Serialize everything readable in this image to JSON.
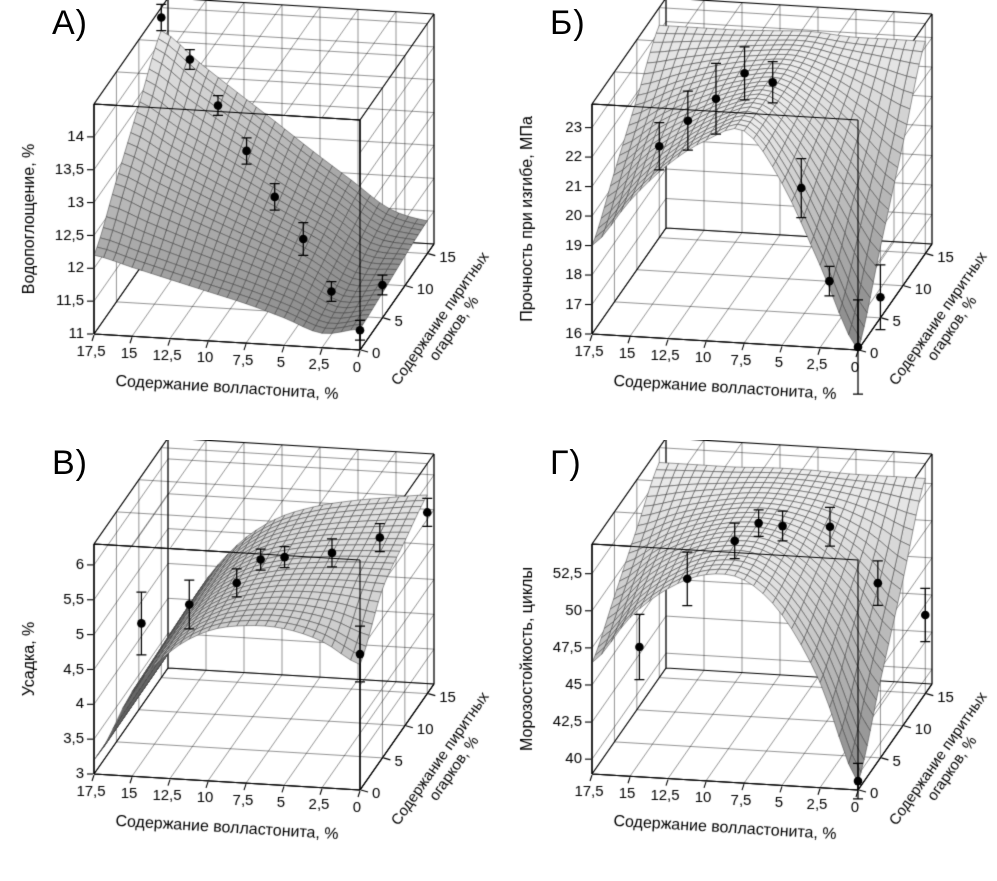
{
  "figure": {
    "colors": {
      "background": "#ffffff",
      "box_line": "#000000",
      "grid_line": "#1a1a1a",
      "mesh_line": "#3c3c3c",
      "surface_low": "#858585",
      "surface_high": "#f2f2f2",
      "point": "#000000",
      "text": "#000000"
    }
  },
  "chart_data": [
    {
      "type": "surface3d",
      "panel_label": "А)",
      "z_axis": {
        "title": "Водопоглощение, %",
        "tick_labels": [
          "11",
          "11,5",
          "12",
          "12,5",
          "13",
          "13,5",
          "14"
        ],
        "range": [
          11,
          14.5
        ]
      },
      "x_axis": {
        "title": "Содержание волластонита, %",
        "tick_labels": [
          "17,5",
          "15",
          "12,5",
          "10",
          "7,5",
          "5",
          "2,5",
          "0"
        ],
        "range": [
          0,
          17.5
        ],
        "reversed": true
      },
      "y_axis": {
        "title_lines": [
          "Содержание пиритных",
          "огарков, %"
        ],
        "tick_labels": [
          "0",
          "5",
          "10",
          "15"
        ],
        "range": [
          0,
          16.5
        ]
      },
      "surface": {
        "x_values": [
          17.5,
          15,
          12.5,
          10,
          7.5,
          5,
          2.5,
          0
        ],
        "y_values": [
          0,
          5,
          10,
          15
        ],
        "z_grid": [
          [
            12.2,
            12.05,
            11.9,
            11.75,
            11.6,
            11.42,
            11.22,
            11.32
          ],
          [
            12.85,
            12.6,
            12.36,
            12.13,
            11.9,
            11.65,
            11.33,
            11.38
          ],
          [
            13.5,
            13.15,
            12.82,
            12.5,
            12.18,
            11.87,
            11.5,
            11.45
          ],
          [
            14.15,
            13.7,
            13.28,
            12.87,
            12.45,
            12.05,
            11.65,
            11.5
          ]
        ]
      },
      "points": [
        {
          "x": 17.5,
          "y": 15,
          "z": 14.35,
          "e": 0.2
        },
        {
          "x": 15,
          "y": 12.9,
          "z": 13.95,
          "e": 0.15
        },
        {
          "x": 12.5,
          "y": 10.7,
          "z": 13.5,
          "e": 0.15
        },
        {
          "x": 10,
          "y": 8.6,
          "z": 13.05,
          "e": 0.2
        },
        {
          "x": 7.5,
          "y": 6.4,
          "z": 12.6,
          "e": 0.2
        },
        {
          "x": 5,
          "y": 4.3,
          "z": 12.2,
          "e": 0.25
        },
        {
          "x": 2.5,
          "y": 2.1,
          "z": 11.65,
          "e": 0.15
        },
        {
          "x": 0,
          "y": 5,
          "z": 11.5,
          "e": 0.15
        },
        {
          "x": 0,
          "y": 0,
          "z": 11.3,
          "e": 0.15
        }
      ]
    },
    {
      "type": "surface3d",
      "panel_label": "Б)",
      "z_axis": {
        "title": "Прочность при изгибе, МПа",
        "tick_labels": [
          "16",
          "17",
          "18",
          "19",
          "20",
          "21",
          "22",
          "23"
        ],
        "range": [
          16,
          23.8
        ]
      },
      "x_axis": {
        "title": "Содержание волластонита, %",
        "tick_labels": [
          "17,5",
          "15",
          "12,5",
          "10",
          "7,5",
          "5",
          "2,5",
          "0"
        ],
        "range": [
          0,
          17.5
        ],
        "reversed": true
      },
      "y_axis": {
        "title_lines": [
          "Содержание пиритных",
          "огарков, %"
        ],
        "tick_labels": [
          "0",
          "5",
          "10",
          "15"
        ],
        "range": [
          0,
          16.5
        ]
      },
      "surface": {
        "x_values": [
          17.5,
          15,
          12.5,
          10,
          7.5,
          5,
          2.5,
          0
        ],
        "y_values": [
          0,
          5,
          10,
          15
        ],
        "z_grid": [
          [
            19.0,
            20.6,
            21.9,
            22.8,
            23.2,
            21.5,
            18.8,
            16.0
          ],
          [
            20.4,
            21.5,
            22.3,
            22.95,
            23.2,
            22.1,
            20.3,
            18.4
          ],
          [
            21.8,
            22.35,
            22.8,
            23.1,
            23.2,
            22.65,
            21.75,
            20.8
          ],
          [
            23.2,
            23.2,
            23.2,
            23.25,
            23.3,
            23.2,
            23.2,
            23.2
          ]
        ]
      },
      "points": [
        {
          "x": 17.5,
          "y": 15,
          "z": 19.1,
          "e": 0.8
        },
        {
          "x": 15,
          "y": 12.9,
          "z": 20.5,
          "e": 1.0
        },
        {
          "x": 12.5,
          "y": 10.7,
          "z": 21.8,
          "e": 1.2
        },
        {
          "x": 10,
          "y": 8.6,
          "z": 23.2,
          "e": 0.9
        },
        {
          "x": 7.5,
          "y": 6.4,
          "z": 23.45,
          "e": 0.7
        },
        {
          "x": 5,
          "y": 4.3,
          "z": 20.4,
          "e": 1.0
        },
        {
          "x": 2.5,
          "y": 2.1,
          "z": 17.8,
          "e": 0.5
        },
        {
          "x": 0,
          "y": 5,
          "z": 16.7,
          "e": 1.1
        },
        {
          "x": 0,
          "y": 0,
          "z": 16.1,
          "e": 1.6
        }
      ]
    },
    {
      "type": "surface3d",
      "panel_label": "В)",
      "z_axis": {
        "title": "Усадка, %",
        "tick_labels": [
          "3",
          "3,5",
          "4",
          "4,5",
          "5",
          "5,5",
          "6"
        ],
        "range": [
          3,
          6.3
        ]
      },
      "x_axis": {
        "title": "Содержание волластонита, %",
        "tick_labels": [
          "17,5",
          "15",
          "12,5",
          "10",
          "7,5",
          "5",
          "2,5",
          "0"
        ],
        "range": [
          0,
          17.5
        ],
        "reversed": true
      },
      "y_axis": {
        "title_lines": [
          "Содержание пиритных",
          "огарков, %"
        ],
        "tick_labels": [
          "0",
          "5",
          "10",
          "15"
        ],
        "range": [
          0,
          16.5
        ]
      },
      "surface": {
        "x_values": [
          17.5,
          15,
          12.5,
          10,
          7.5,
          5,
          2.5,
          0
        ],
        "y_values": [
          0,
          5,
          10,
          15
        ],
        "z_grid": [
          [
            3.2,
            4.21,
            4.82,
            5.15,
            5.26,
            5.25,
            5.1,
            4.8
          ],
          [
            3.2,
            4.24,
            4.87,
            5.22,
            5.38,
            5.44,
            5.45,
            5.42
          ],
          [
            3.2,
            4.27,
            4.92,
            5.3,
            5.48,
            5.57,
            5.62,
            5.65
          ],
          [
            3.2,
            4.29,
            4.97,
            5.37,
            5.58,
            5.7,
            5.78,
            5.85
          ]
        ]
      },
      "points": [
        {
          "x": 15,
          "y": 2.1,
          "z": 5.0,
          "e": 0.45
        },
        {
          "x": 12.5,
          "y": 4.3,
          "z": 5.1,
          "e": 0.35
        },
        {
          "x": 10,
          "y": 6.4,
          "z": 5.25,
          "e": 0.2
        },
        {
          "x": 8.75,
          "y": 7.5,
          "z": 5.5,
          "e": 0.15
        },
        {
          "x": 7.5,
          "y": 8.6,
          "z": 5.45,
          "e": 0.15
        },
        {
          "x": 5,
          "y": 10.7,
          "z": 5.35,
          "e": 0.2
        },
        {
          "x": 2.5,
          "y": 12.9,
          "z": 5.4,
          "e": 0.2
        },
        {
          "x": 0,
          "y": 15,
          "z": 5.6,
          "e": 0.2
        },
        {
          "x": 0,
          "y": 0,
          "z": 4.95,
          "e": 0.4
        }
      ]
    },
    {
      "type": "surface3d",
      "panel_label": "Г)",
      "z_axis": {
        "title": "Морозостойкость, циклы",
        "tick_labels": [
          "40",
          "42,5",
          "45",
          "47,5",
          "50",
          "52,5"
        ],
        "range": [
          39,
          54.5
        ]
      },
      "x_axis": {
        "title": "Содержание волластонита, %",
        "tick_labels": [
          "17,5",
          "15",
          "12,5",
          "10",
          "7,5",
          "5",
          "2,5",
          "0"
        ],
        "range": [
          0,
          17.5
        ],
        "reversed": true
      },
      "y_axis": {
        "title_lines": [
          "Содержание пиритных",
          "огарков, %"
        ],
        "tick_labels": [
          "0",
          "5",
          "10",
          "15"
        ],
        "range": [
          0,
          16.5
        ]
      },
      "surface": {
        "x_values": [
          17.5,
          15,
          12.5,
          10,
          7.5,
          5,
          2.5,
          0
        ],
        "y_values": [
          0,
          5,
          10,
          15
        ],
        "z_grid": [
          [
            46.5,
            49.7,
            51.8,
            52.9,
            52.7,
            50.5,
            46.1,
            39.5
          ],
          [
            48.8,
            51.0,
            52.4,
            53.1,
            53.0,
            51.5,
            48.6,
            44.2
          ],
          [
            51.2,
            52.2,
            52.9,
            53.3,
            53.2,
            52.5,
            51.0,
            48.8
          ],
          [
            53.5,
            53.5,
            53.5,
            53.6,
            53.6,
            53.5,
            53.5,
            53.5
          ]
        ]
      },
      "points": [
        {
          "x": 15,
          "y": 2.1,
          "z": 46.8,
          "e": 2.2
        },
        {
          "x": 12.5,
          "y": 4.3,
          "z": 50.6,
          "e": 1.8
        },
        {
          "x": 10,
          "y": 6.4,
          "z": 52.4,
          "e": 1.2
        },
        {
          "x": 8.75,
          "y": 7.5,
          "z": 53.2,
          "e": 0.9
        },
        {
          "x": 7.5,
          "y": 8.6,
          "z": 52.6,
          "e": 1.0
        },
        {
          "x": 5,
          "y": 10.7,
          "z": 51.8,
          "e": 1.3
        },
        {
          "x": 2.5,
          "y": 12.9,
          "z": 47.2,
          "e": 1.5
        },
        {
          "x": 0,
          "y": 15,
          "z": 44.3,
          "e": 1.8
        },
        {
          "x": 0,
          "y": 0,
          "z": 39.6,
          "e": 1.2
        }
      ]
    }
  ]
}
